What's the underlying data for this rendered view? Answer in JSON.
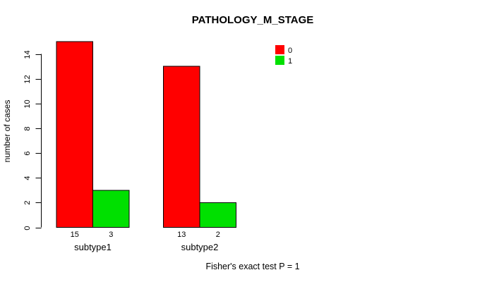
{
  "title": "PATHOLOGY_M_STAGE",
  "footer": "Fisher's exact test P = 1",
  "colors": {
    "background": "#ffffff",
    "axis": "#000000",
    "bar_border": "#000000",
    "series_0": "#ff0000",
    "series_1": "#00e000"
  },
  "chart_data": {
    "type": "bar",
    "title": "PATHOLOGY_M_STAGE",
    "categories": [
      "subtype1",
      "subtype2"
    ],
    "series": [
      {
        "name": "0",
        "color": "#ff0000",
        "values": [
          15,
          13
        ]
      },
      {
        "name": "1",
        "color": "#00e000",
        "values": [
          3,
          2
        ]
      }
    ],
    "bar_value_labels": [
      [
        "15",
        "3"
      ],
      [
        "13",
        "2"
      ]
    ],
    "xlabel": "",
    "ylabel": "number of cases",
    "yticks": [
      0,
      2,
      4,
      6,
      8,
      10,
      12,
      14
    ],
    "ylim": [
      0,
      15
    ],
    "grid": false,
    "legend_position": "top-right",
    "legend_entries": [
      "0",
      "1"
    ],
    "annotation": "Fisher's exact test P = 1"
  }
}
